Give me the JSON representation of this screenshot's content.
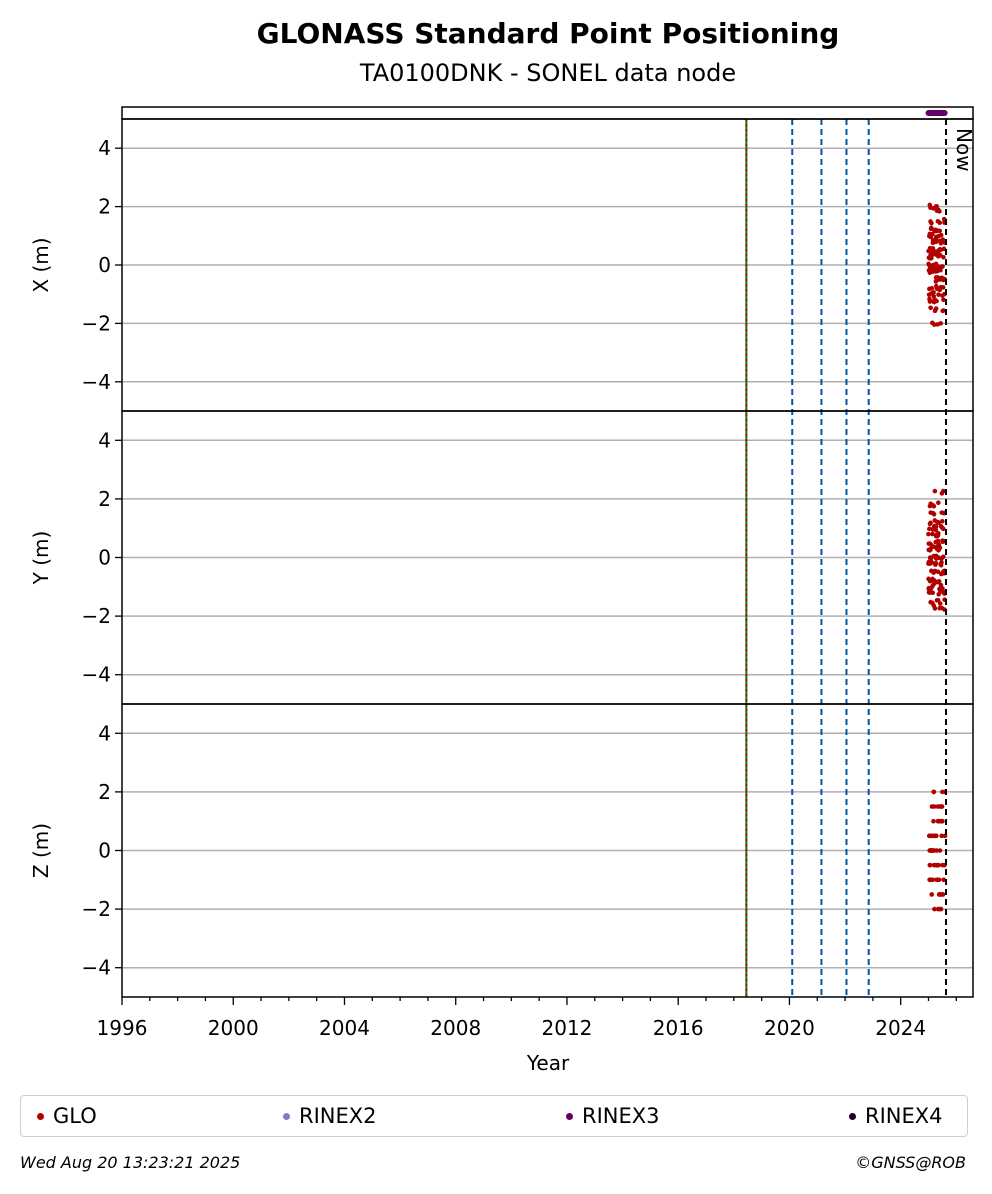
{
  "chart_data": {
    "type": "scatter",
    "title": "GLONASS Standard Point Positioning",
    "subtitle": "TA0100DNK - SONEL data node",
    "xlabel": "Year",
    "xlim": [
      1996,
      2026.6
    ],
    "x_ticks": [
      1996,
      2000,
      2004,
      2008,
      2012,
      2016,
      2020,
      2024
    ],
    "now_label": "Now",
    "now_x": 2025.63,
    "panels": [
      {
        "ylabel": "X (m)",
        "ylim": [
          -5,
          5
        ],
        "y_ticks": [
          -4,
          -2,
          0,
          2,
          4
        ]
      },
      {
        "ylabel": "Y (m)",
        "ylim": [
          -5,
          5
        ],
        "y_ticks": [
          -4,
          -2,
          0,
          2,
          4
        ]
      },
      {
        "ylabel": "Z (m)",
        "ylim": [
          -5,
          5
        ],
        "y_ticks": [
          -4,
          -2,
          0,
          2,
          4
        ]
      }
    ],
    "event_lines": [
      {
        "x": 2018.45,
        "color": "#008000",
        "style": "solid"
      },
      {
        "x": 2018.45,
        "color": "#cc0000",
        "style": "dotted"
      },
      {
        "x": 2020.1,
        "color": "#0055aa",
        "style": "dashed"
      },
      {
        "x": 2021.15,
        "color": "#0055aa",
        "style": "dashed"
      },
      {
        "x": 2022.05,
        "color": "#0055aa",
        "style": "dashed"
      },
      {
        "x": 2022.85,
        "color": "#0055aa",
        "style": "dashed"
      }
    ],
    "rinex3_data_range": [
      2025.0,
      2025.58
    ],
    "series": [
      {
        "name": "GLO",
        "color": "#b00000",
        "x_range": [
          2025.0,
          2025.6
        ],
        "X_values": [
          2.0,
          1.9,
          1.5,
          1.2,
          1.0,
          0.8,
          0.5,
          0.3,
          0.0,
          -0.2,
          -0.5,
          -0.8,
          -1.0,
          -1.2,
          -1.5,
          -2.0
        ],
        "Y_values": [
          2.2,
          1.8,
          1.5,
          1.2,
          1.0,
          0.8,
          0.5,
          0.3,
          0.0,
          -0.2,
          -0.5,
          -0.8,
          -1.0,
          -1.2,
          -1.5,
          -1.7
        ],
        "Z_values": [
          2.0,
          1.5,
          1.0,
          0.5,
          0.0,
          -0.5,
          -1.0,
          -1.5,
          -2.0
        ]
      },
      {
        "name": "RINEX2",
        "color": "#8080c0"
      },
      {
        "name": "RINEX3",
        "color": "#660066"
      },
      {
        "name": "RINEX4",
        "color": "#200020"
      }
    ],
    "legend_position": "bottom"
  },
  "footer": {
    "timestamp": "Wed Aug 20 13:23:21 2025",
    "credit": "©GNSS@ROB"
  }
}
